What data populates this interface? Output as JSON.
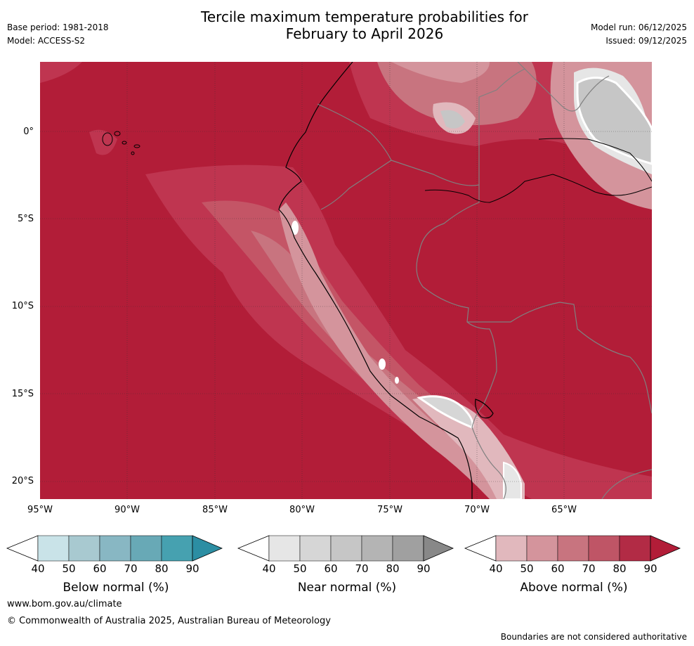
{
  "title": {
    "line1": "Tercile maximum temperature probabilities for",
    "line2": "February to April 2026"
  },
  "meta": {
    "base_period": "Base period: 1981-2018",
    "model": "Model: ACCESS-S2",
    "model_run": "Model run: 06/12/2025",
    "issued": "Issued: 09/12/2025"
  },
  "axes": {
    "lat_labels": [
      "0°",
      "5°S",
      "10°S",
      "15°S",
      "20°S"
    ],
    "lon_labels": [
      "95°W",
      "90°W",
      "85°W",
      "80°W",
      "75°W",
      "70°W",
      "65°W"
    ]
  },
  "colorbars": {
    "ticks": [
      "40",
      "50",
      "60",
      "70",
      "80",
      "90"
    ],
    "below": {
      "label": "Below normal (%)",
      "colors": [
        "#c9e3e8",
        "#a8c9d0",
        "#88b7c3",
        "#68a9b6",
        "#46a1b0",
        "#2c8ea3"
      ]
    },
    "near": {
      "label": "Near normal (%)",
      "colors": [
        "#e6e6e6",
        "#d6d6d6",
        "#c6c6c6",
        "#b4b4b4",
        "#a0a0a0",
        "#888888"
      ]
    },
    "above": {
      "label": "Above normal (%)",
      "colors": [
        "#e1b8bd",
        "#d4949c",
        "#c8747f",
        "#bf5566",
        "#b22b45",
        "#b21d38"
      ]
    }
  },
  "footer": {
    "website": "www.bom.gov.au/climate",
    "copyright": "© Commonwealth of Australia 2025, Australian Bureau of Meteorology",
    "disclaimer": "Boundaries are not considered authoritative"
  }
}
